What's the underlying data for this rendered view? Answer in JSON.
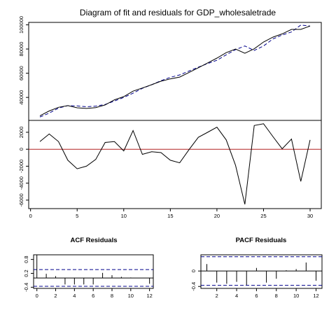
{
  "title": "Diagram of fit and residuals for GDP_wholesaletrade",
  "colors": {
    "fit": "#00008B",
    "zero_line": "#B22222",
    "acf_ci": "#00008B",
    "line": "#000000"
  },
  "chart_data": [
    {
      "type": "line",
      "name": "fit",
      "x": [
        1,
        2,
        3,
        4,
        5,
        6,
        7,
        8,
        9,
        10,
        11,
        12,
        13,
        14,
        15,
        16,
        17,
        18,
        19,
        20,
        21,
        22,
        23,
        24,
        25,
        26,
        27,
        28,
        29,
        30
      ],
      "series": [
        {
          "values": [
            24800,
            28800,
            31800,
            33200,
            31400,
            30900,
            31600,
            33800,
            38000,
            40700,
            45200,
            47800,
            50500,
            53400,
            55300,
            56800,
            60600,
            64500,
            68500,
            72500,
            77000,
            80000,
            76500,
            80200,
            85800,
            89800,
            92500,
            96200,
            96200,
            99000
          ]
        },
        {
          "line_style": "dashed",
          "values": [
            23800,
            27000,
            31200,
            33200,
            33000,
            32300,
            32800,
            34200,
            37000,
            40000,
            43500,
            47500,
            50500,
            53800,
            56600,
            58600,
            61800,
            65000,
            68000,
            70700,
            75200,
            79500,
            82500,
            78800,
            82500,
            88300,
            91600,
            94100,
            99800,
            99000
          ]
        }
      ],
      "yticks": [
        40000,
        60000,
        80000,
        100000
      ],
      "ylim": [
        21000,
        102000
      ]
    },
    {
      "type": "line",
      "name": "residuals",
      "x": [
        1,
        2,
        3,
        4,
        5,
        6,
        7,
        8,
        9,
        10,
        11,
        12,
        13,
        14,
        15,
        16,
        17,
        18,
        19,
        20,
        21,
        22,
        23,
        24,
        25,
        26,
        27,
        28,
        29,
        30
      ],
      "values": [
        900,
        1800,
        900,
        -1300,
        -2300,
        -2000,
        -1200,
        800,
        900,
        -200,
        2200,
        -600,
        -300,
        -400,
        -1300,
        -1600,
        -50,
        1400,
        2000,
        2600,
        1100,
        -1900,
        -6500,
        2800,
        3000,
        1500,
        50,
        1200,
        -3800,
        1100
      ],
      "yticks": [
        -6000,
        -4000,
        -2000,
        0,
        2000
      ],
      "xticks": [
        0,
        5,
        10,
        15,
        20,
        25,
        30
      ],
      "xlim": [
        -0.2,
        31.2
      ],
      "ylim": [
        -7000,
        3400
      ],
      "reference_line": 0
    },
    {
      "type": "bar",
      "title": "ACF Residuals",
      "x": [
        0,
        1,
        2,
        3,
        4,
        5,
        6,
        7,
        8,
        9,
        10,
        11,
        12
      ],
      "values": [
        1.0,
        0.18,
        0.08,
        -0.28,
        -0.28,
        -0.28,
        -0.28,
        0.22,
        0.12,
        0.05,
        0.02,
        0.0,
        -0.25
      ],
      "xticks": [
        0,
        2,
        4,
        6,
        8,
        10,
        12
      ],
      "yticks": [
        -0.4,
        0.2,
        0.8
      ],
      "ylim": [
        -0.45,
        1.0
      ],
      "ci": [
        0.36,
        -0.36
      ]
    },
    {
      "type": "bar",
      "title": "PACF Residuals",
      "x": [
        1,
        2,
        3,
        4,
        5,
        6,
        7,
        8,
        9,
        10,
        11,
        12
      ],
      "values": [
        0.18,
        -0.3,
        -0.33,
        -0.28,
        -0.36,
        0.08,
        -0.3,
        -0.2,
        0.02,
        0.05,
        0.22,
        -0.25
      ],
      "xticks": [
        2,
        4,
        6,
        8,
        10,
        12
      ],
      "yticks": [
        -0.4,
        0.0
      ],
      "ylim": [
        -0.45,
        0.42
      ],
      "ci": [
        0.37,
        -0.37
      ]
    }
  ]
}
